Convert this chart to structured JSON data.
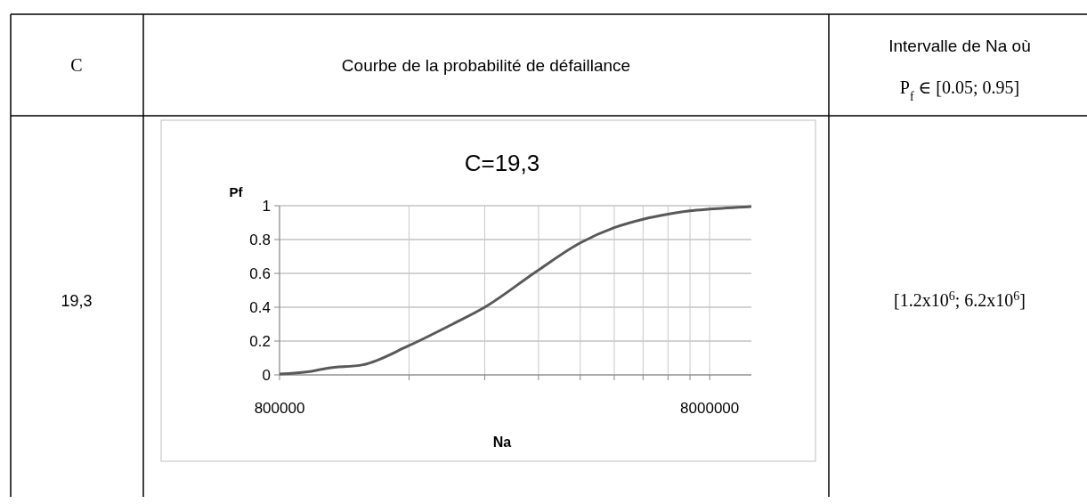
{
  "chart_data": {
    "type": "line",
    "title": "C=19,3",
    "xlabel": "Na",
    "ylabel": "Pf",
    "log": "x",
    "grid": true,
    "xlim": [
      800000,
      10000000
    ],
    "xticks": [
      800000,
      {
        "value": 1600000,
        "label": null
      },
      {
        "value": 2400000,
        "label": null
      },
      {
        "value": 3200000,
        "label": null
      },
      {
        "value": 4000000,
        "label": null
      },
      {
        "value": 4800000,
        "label": null
      },
      {
        "value": 5600000,
        "label": null
      },
      {
        "value": 6400000,
        "label": null
      },
      {
        "value": 7200000,
        "label": null
      },
      8000000
    ],
    "ylim": [
      0,
      1
    ],
    "yticks": [
      0,
      0.2,
      0.4,
      0.6,
      0.8,
      1
    ],
    "series": [
      {
        "color": "#595959",
        "x": [
          800000,
          940000,
          1035000,
          1250000,
          1590000,
          2020000,
          2400000,
          3200000,
          4000000,
          4800000,
          5600000,
          6400000,
          7200000,
          8000000,
          10000000
        ],
        "values": [
          0.005,
          0.02,
          0.04,
          0.06,
          0.17,
          0.3,
          0.4,
          0.62,
          0.78,
          0.87,
          0.92,
          0.95,
          0.97,
          0.98,
          0.995
        ]
      }
    ],
    "annotations": [
      "C",
      "Courbe de la probabilité de défaillance",
      "Intervalle de Na où",
      "P$_{f}$ ∈ [0.05; 0.95]",
      "19,3",
      "[1.2x10$^{6}$; 6.2x10$^{6}$]"
    ]
  }
}
